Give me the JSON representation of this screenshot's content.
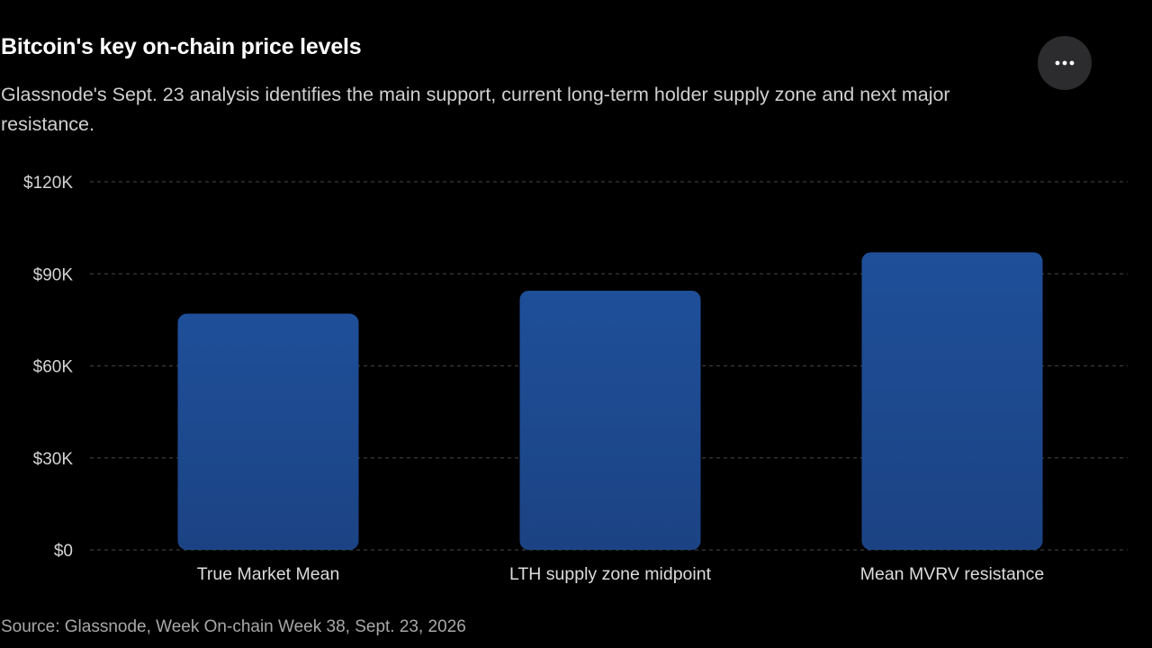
{
  "header": {
    "title": "Bitcoin's key on-chain price levels",
    "subtitle": "Glassnode's Sept. 23 analysis identifies the main support, current long-term holder supply zone and next major resistance.",
    "more_button_icon": "more-horizontal-icon"
  },
  "footer": {
    "source": "Source: Glassnode, Week On-chain Week 38, Sept. 23, 2026"
  },
  "colors": {
    "background": "#000000",
    "bar_top": "#1f4f99",
    "bar_bottom": "#1b4384",
    "grid": "#3a3a3a",
    "tick_text": "#d4d4d4",
    "category_text": "#dcdcdc"
  },
  "chart_data": {
    "type": "bar",
    "title": "Bitcoin's key on-chain price levels",
    "categories": [
      "True Market Mean",
      "LTH supply zone midpoint",
      "Mean MVRV resistance"
    ],
    "values": [
      77000,
      84500,
      97000
    ],
    "ylim": [
      0,
      120000
    ],
    "yticks": [
      0,
      30000,
      60000,
      90000,
      120000
    ],
    "ytick_labels": [
      "$0",
      "$30K",
      "$60K",
      "$90K",
      "$120K"
    ],
    "xlabel": "",
    "ylabel": "",
    "grid": true,
    "legend": "none"
  }
}
